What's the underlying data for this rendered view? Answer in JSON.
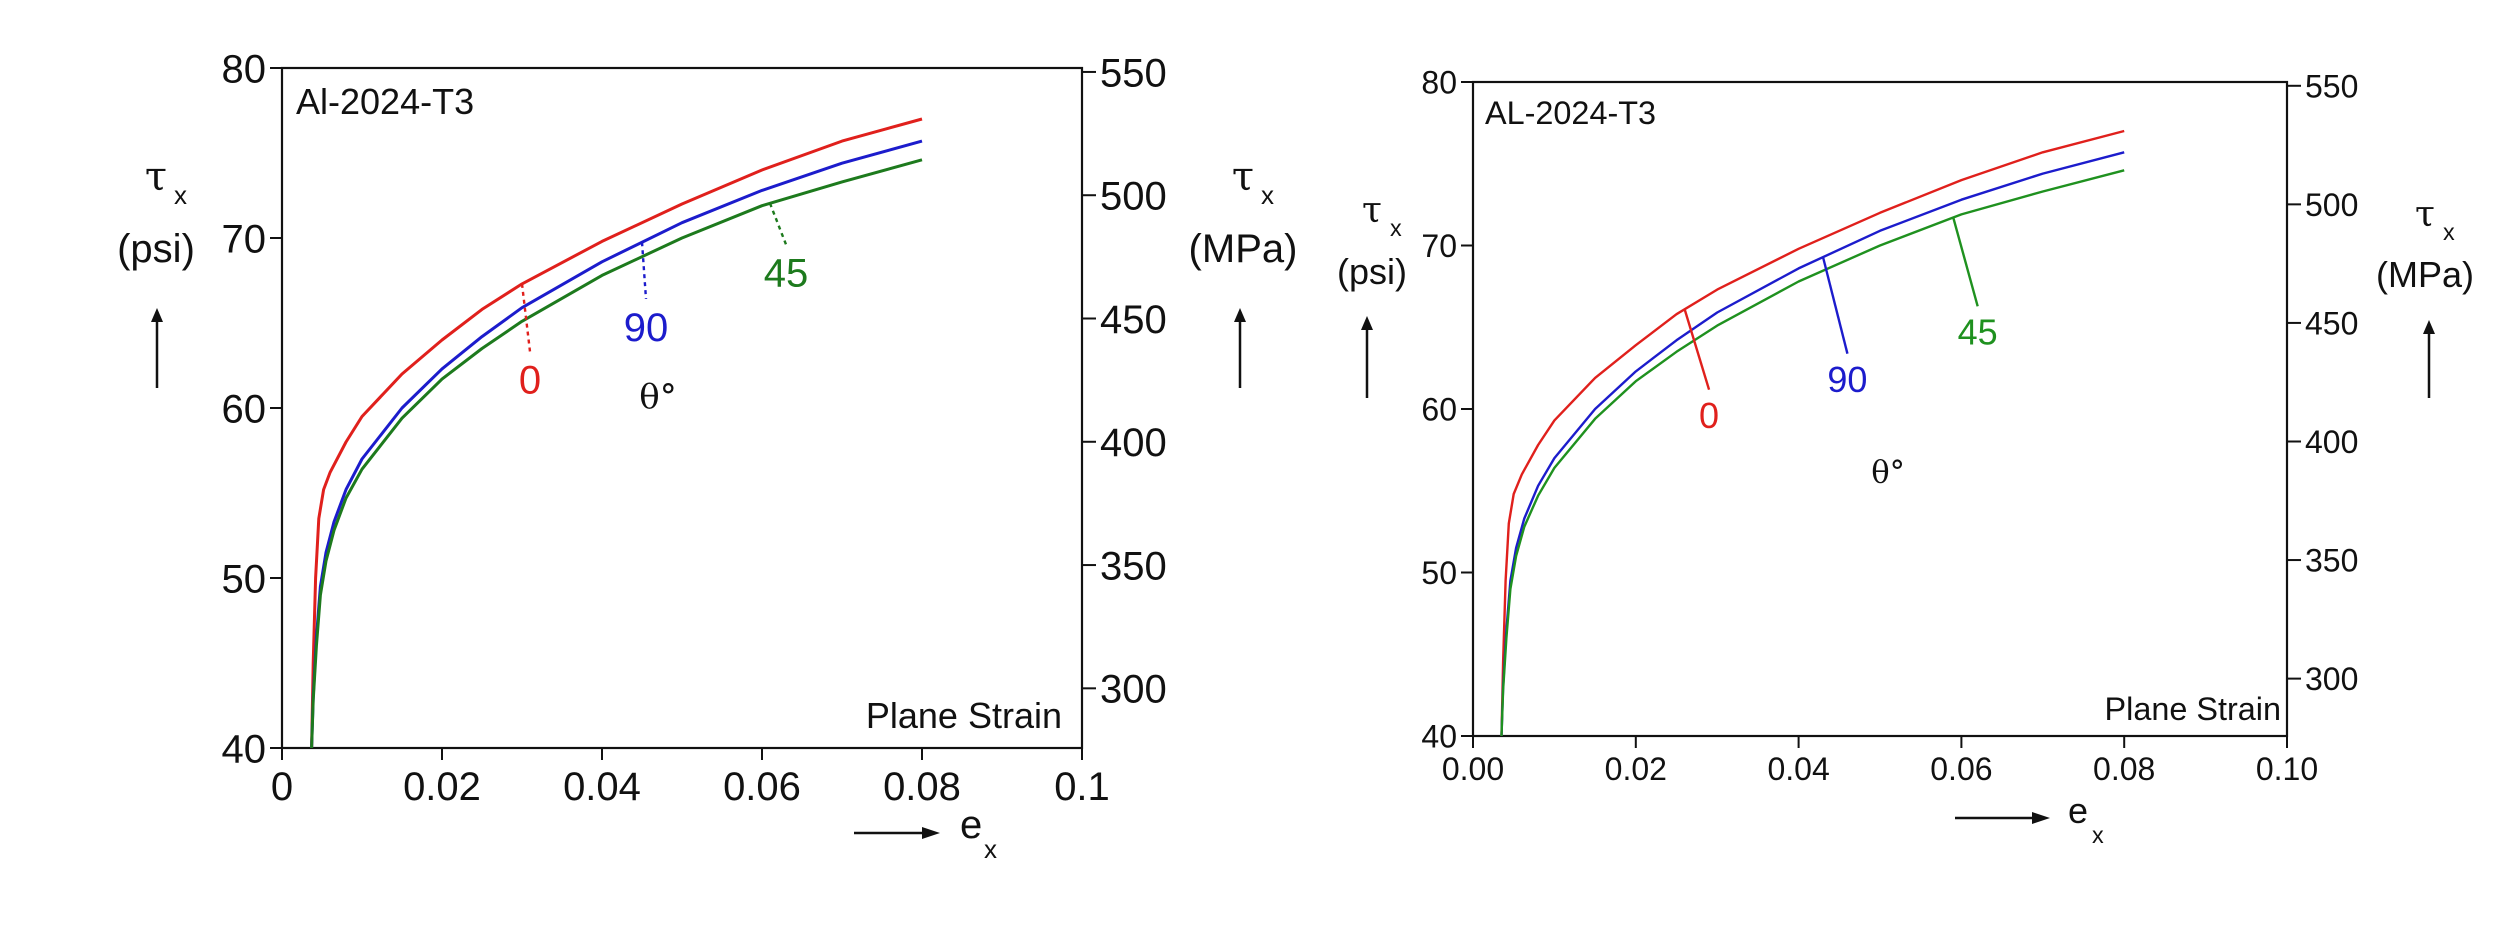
{
  "chart_data": [
    {
      "type": "line",
      "title": "Al-2024-T3",
      "annotation": "Plane Strain",
      "theta_label": "θ°",
      "xlabel": "e",
      "xlabel_sub": "x",
      "ylabel_left": [
        "τ",
        "(psi)"
      ],
      "ylabel_left_sub": "x",
      "ylabel_right": [
        "τ",
        "(MPa)"
      ],
      "ylabel_right_sub": "x",
      "xlim": [
        0,
        0.1
      ],
      "ylim_left": [
        40,
        80
      ],
      "ylim_right_mpa": [
        275.8,
        551.6
      ],
      "x_ticks": [
        "0",
        "0.02",
        "0.04",
        "0.06",
        "0.08",
        "0.1"
      ],
      "y_ticks_left": [
        "40",
        "50",
        "60",
        "70",
        "80"
      ],
      "y_ticks_right": [
        "300",
        "350",
        "400",
        "450",
        "500",
        "550"
      ],
      "grid": false,
      "series": [
        {
          "name": "0",
          "color": "#e0201c",
          "x": [
            0.0037,
            0.0039,
            0.0042,
            0.0046,
            0.0052,
            0.006,
            0.008,
            0.01,
            0.015,
            0.02,
            0.025,
            0.03,
            0.04,
            0.05,
            0.06,
            0.07,
            0.08
          ],
          "y": [
            40,
            45,
            50,
            53.5,
            55.2,
            56.2,
            58.0,
            59.5,
            62.0,
            64.0,
            65.8,
            67.3,
            69.8,
            72.0,
            74.0,
            75.7,
            77.0
          ]
        },
        {
          "name": "90",
          "color": "#1c1ccc",
          "x": [
            0.0037,
            0.0039,
            0.0043,
            0.0048,
            0.0055,
            0.0065,
            0.008,
            0.01,
            0.015,
            0.02,
            0.025,
            0.03,
            0.04,
            0.05,
            0.06,
            0.07,
            0.08
          ],
          "y": [
            40,
            43,
            46.5,
            49.5,
            51.5,
            53.3,
            55.2,
            57.0,
            60.0,
            62.3,
            64.2,
            65.9,
            68.6,
            70.9,
            72.8,
            74.4,
            75.7
          ]
        },
        {
          "name": "45",
          "color": "#1d7a1d",
          "x": [
            0.0037,
            0.0039,
            0.0043,
            0.0048,
            0.0055,
            0.0065,
            0.008,
            0.01,
            0.015,
            0.02,
            0.025,
            0.03,
            0.04,
            0.05,
            0.06,
            0.07,
            0.08
          ],
          "y": [
            40,
            42.8,
            46.0,
            49.0,
            51.0,
            52.8,
            54.7,
            56.4,
            59.4,
            61.7,
            63.5,
            65.1,
            67.8,
            70.0,
            71.9,
            73.3,
            74.6
          ]
        }
      ],
      "leader_labels": [
        {
          "text": "0",
          "series": "0",
          "x": 0.03,
          "lx": 0.031,
          "ly": 61.2
        },
        {
          "text": "90",
          "series": "90",
          "x": 0.045,
          "lx": 0.0455,
          "ly": 64.3
        },
        {
          "text": "45",
          "series": "45",
          "x": 0.061,
          "lx": 0.063,
          "ly": 67.5
        }
      ],
      "theta_pos": {
        "x": 0.047,
        "y": 60.0
      }
    },
    {
      "type": "line",
      "title": "AL-2024-T3",
      "annotation": "Plane Strain",
      "theta_label": "θ°",
      "xlabel": "e",
      "xlabel_sub": "x",
      "ylabel_left": [
        "τ",
        "(psi)"
      ],
      "ylabel_left_sub": "x",
      "ylabel_right": [
        "τ",
        "(MPa)"
      ],
      "ylabel_right_sub": "x",
      "xlim": [
        0,
        0.1
      ],
      "ylim_left": [
        40,
        80
      ],
      "ylim_right_mpa": [
        275.8,
        551.6
      ],
      "x_ticks": [
        "0.00",
        "0.02",
        "0.04",
        "0.06",
        "0.08",
        "0.10"
      ],
      "y_ticks_left": [
        "40",
        "50",
        "60",
        "70",
        "80"
      ],
      "y_ticks_right": [
        "300",
        "350",
        "400",
        "450",
        "500",
        "550"
      ],
      "grid": false,
      "series": [
        {
          "name": "0",
          "color": "#e0201c",
          "x": [
            0.0035,
            0.0037,
            0.004,
            0.0044,
            0.005,
            0.006,
            0.008,
            0.01,
            0.015,
            0.02,
            0.025,
            0.03,
            0.04,
            0.05,
            0.06,
            0.07,
            0.08
          ],
          "y": [
            40,
            44.5,
            49.5,
            53.0,
            54.8,
            56.0,
            57.8,
            59.3,
            61.9,
            63.9,
            65.8,
            67.3,
            69.8,
            72.0,
            74.0,
            75.7,
            77.0
          ]
        },
        {
          "name": "90",
          "color": "#1c1ccc",
          "x": [
            0.0035,
            0.0037,
            0.0041,
            0.0046,
            0.0053,
            0.0063,
            0.008,
            0.01,
            0.015,
            0.02,
            0.025,
            0.03,
            0.04,
            0.05,
            0.06,
            0.07,
            0.08
          ],
          "y": [
            40,
            43,
            46.5,
            49.5,
            51.5,
            53.3,
            55.3,
            57.0,
            60.0,
            62.3,
            64.2,
            65.9,
            68.6,
            70.9,
            72.8,
            74.4,
            75.7
          ]
        },
        {
          "name": "45",
          "color": "#1f911f",
          "x": [
            0.0035,
            0.0037,
            0.0041,
            0.0046,
            0.0053,
            0.0063,
            0.008,
            0.01,
            0.015,
            0.02,
            0.025,
            0.03,
            0.04,
            0.05,
            0.06,
            0.07,
            0.08
          ],
          "y": [
            40,
            42.8,
            46.0,
            49.0,
            51.0,
            52.8,
            54.7,
            56.4,
            59.4,
            61.7,
            63.5,
            65.1,
            67.8,
            70.0,
            71.9,
            73.3,
            74.6
          ]
        }
      ],
      "leader_labels": [
        {
          "text": "0",
          "series": "0",
          "x": 0.026,
          "lx": 0.029,
          "ly": 59.2
        },
        {
          "text": "90",
          "series": "90",
          "x": 0.043,
          "lx": 0.046,
          "ly": 61.4
        },
        {
          "text": "45",
          "series": "45",
          "x": 0.059,
          "lx": 0.062,
          "ly": 64.3
        }
      ],
      "theta_pos": {
        "x": 0.051,
        "y": 55.5
      }
    }
  ]
}
